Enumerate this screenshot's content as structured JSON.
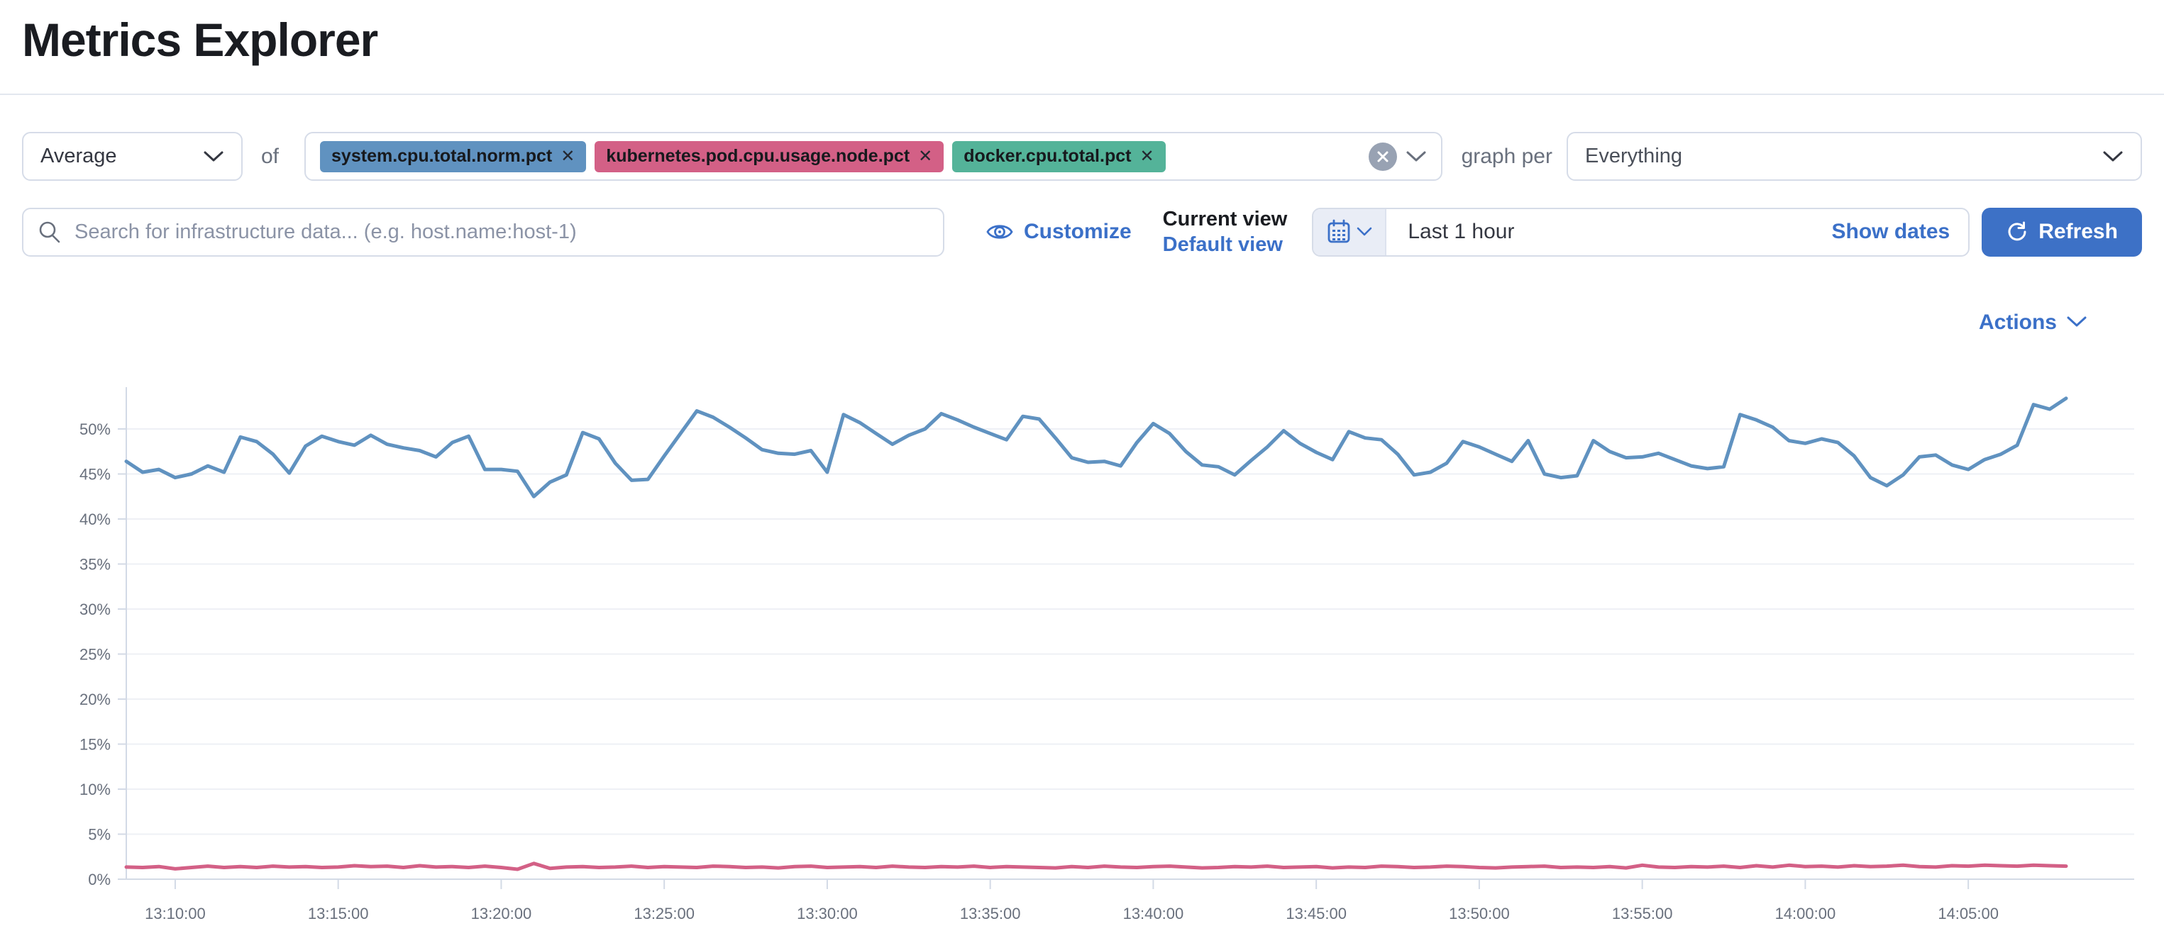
{
  "header": {
    "title": "Metrics Explorer"
  },
  "toolbar": {
    "aggregation": {
      "value": "Average"
    },
    "of_label": "of",
    "metrics": [
      {
        "label": "system.cpu.total.norm.pct",
        "color": "#6092C0"
      },
      {
        "label": "kubernetes.pod.cpu.usage.node.pct",
        "color": "#D36086"
      },
      {
        "label": "docker.cpu.total.pct",
        "color": "#54B399"
      }
    ],
    "clear_icon": "x-in-circle",
    "graph_per_label": "graph per",
    "group_by": {
      "value": "Everything"
    }
  },
  "searchbar": {
    "placeholder": "Search for infrastructure data... (e.g. host.name:host-1)",
    "customize_label": "Customize",
    "view": {
      "current_label": "Current view",
      "default_label": "Default view"
    },
    "datepicker": {
      "duration": "Last 1 hour",
      "show_dates_label": "Show dates"
    },
    "refresh_label": "Refresh"
  },
  "chart_header": {
    "actions_label": "Actions"
  },
  "colors": {
    "accent_blue": "#3d71c6",
    "border": "#d6dce8",
    "muted_text": "#69707d",
    "grid": "#eef0f5",
    "axis": "#d3dae6"
  },
  "chart_data": {
    "type": "line",
    "title": "",
    "xlabel": "",
    "ylabel": "",
    "y_unit": "%",
    "ylim": [
      0,
      55
    ],
    "y_ticks": [
      0,
      5,
      10,
      15,
      20,
      25,
      30,
      35,
      40,
      45,
      50
    ],
    "x_tick_labels": [
      "13:10:00",
      "13:15:00",
      "13:20:00",
      "13:25:00",
      "13:30:00",
      "13:35:00",
      "13:40:00",
      "13:45:00",
      "13:50:00",
      "13:55:00",
      "14:00:00",
      "14:05:00"
    ],
    "x_window": {
      "start": "13:08:30",
      "end": "14:07:30",
      "point_interval_seconds": 30
    },
    "grid": true,
    "legend": "none",
    "layout": {
      "first_tick_index": 3,
      "tick_step": 10,
      "points": 120
    },
    "series": [
      {
        "name": "system.cpu.total.norm.pct",
        "color": "#6092C0",
        "values": [
          46.4,
          45.2,
          45.5,
          44.6,
          45.0,
          45.9,
          45.2,
          49.1,
          48.6,
          47.2,
          45.1,
          48.1,
          49.2,
          48.6,
          48.2,
          49.3,
          48.3,
          47.9,
          47.6,
          46.9,
          48.5,
          49.2,
          45.5,
          45.5,
          45.3,
          42.5,
          44.1,
          44.9,
          49.6,
          48.9,
          46.2,
          44.3,
          44.4,
          47.0,
          49.5,
          52.0,
          51.3,
          50.2,
          49.0,
          47.7,
          47.3,
          47.2,
          47.6,
          45.2,
          51.6,
          50.7,
          49.5,
          48.3,
          49.3,
          50.0,
          51.7,
          51.0,
          50.2,
          49.5,
          48.8,
          51.4,
          51.1,
          49.0,
          46.8,
          46.3,
          46.4,
          45.9,
          48.5,
          50.6,
          49.5,
          47.5,
          46.0,
          45.8,
          44.9,
          46.5,
          48.0,
          49.8,
          48.4,
          47.4,
          46.6,
          49.7,
          49.0,
          48.8,
          47.2,
          44.9,
          45.2,
          46.2,
          48.6,
          48.0,
          47.2,
          46.4,
          48.7,
          45.0,
          44.6,
          44.8,
          48.7,
          47.5,
          46.8,
          46.9,
          47.3,
          46.6,
          45.9,
          45.6,
          45.8,
          51.6,
          51.0,
          50.2,
          48.7,
          48.4,
          48.9,
          48.5,
          47.0,
          44.6,
          43.7,
          44.9,
          46.9,
          47.1,
          46.0,
          45.5,
          46.6,
          47.2,
          48.2,
          52.7,
          52.2,
          53.4
        ]
      },
      {
        "name": "kubernetes.pod.cpu.usage.node.pct",
        "color": "#D36086",
        "values": [
          1.35,
          1.3,
          1.4,
          1.15,
          1.3,
          1.45,
          1.3,
          1.4,
          1.3,
          1.45,
          1.35,
          1.4,
          1.3,
          1.35,
          1.5,
          1.4,
          1.45,
          1.3,
          1.5,
          1.35,
          1.4,
          1.3,
          1.45,
          1.3,
          1.1,
          1.75,
          1.2,
          1.35,
          1.4,
          1.3,
          1.35,
          1.45,
          1.3,
          1.4,
          1.35,
          1.3,
          1.45,
          1.4,
          1.3,
          1.35,
          1.25,
          1.4,
          1.45,
          1.3,
          1.35,
          1.4,
          1.3,
          1.45,
          1.35,
          1.3,
          1.4,
          1.35,
          1.45,
          1.3,
          1.4,
          1.35,
          1.3,
          1.25,
          1.4,
          1.3,
          1.45,
          1.35,
          1.3,
          1.4,
          1.45,
          1.35,
          1.25,
          1.3,
          1.4,
          1.35,
          1.45,
          1.3,
          1.35,
          1.4,
          1.25,
          1.35,
          1.3,
          1.45,
          1.4,
          1.3,
          1.35,
          1.45,
          1.4,
          1.3,
          1.25,
          1.35,
          1.4,
          1.45,
          1.3,
          1.35,
          1.3,
          1.4,
          1.25,
          1.55,
          1.35,
          1.3,
          1.4,
          1.35,
          1.45,
          1.3,
          1.5,
          1.35,
          1.55,
          1.4,
          1.45,
          1.35,
          1.5,
          1.4,
          1.45,
          1.55,
          1.4,
          1.35,
          1.5,
          1.45,
          1.55,
          1.5,
          1.45,
          1.55,
          1.5,
          1.45
        ]
      }
    ]
  }
}
